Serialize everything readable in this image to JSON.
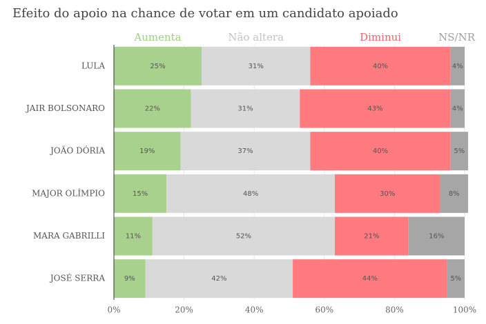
{
  "chart_data": {
    "type": "stacked-bar-horizontal",
    "title": "Efeito do apoio na chance de votar em um candidato apoiado",
    "categories": [
      "LULA",
      "JAIR BOLSONARO",
      "JOÃO DÓRIA",
      "MAJOR OLÍMPIO",
      "MARA GABRILLI",
      "JOSÉ SERRA"
    ],
    "series": [
      {
        "name": "Aumenta",
        "color": "#a9d18e",
        "legend_color": "#9ccf85",
        "values": [
          25,
          22,
          19,
          15,
          11,
          9
        ],
        "value_labels": [
          "25%",
          "22%",
          "19%",
          "15%",
          "11%",
          "9%"
        ]
      },
      {
        "name": "Não altera",
        "color": "#d9d9d9",
        "legend_color": "#c4c4c4",
        "values": [
          31,
          31,
          37,
          48,
          52,
          42
        ],
        "value_labels": [
          "31%",
          "31%",
          "37%",
          "48%",
          "52%",
          "42%"
        ]
      },
      {
        "name": "Diminui",
        "color": "#ff7b80",
        "legend_color": "#f0626b",
        "values": [
          40,
          43,
          40,
          30,
          21,
          44
        ],
        "value_labels": [
          "40%",
          "43%",
          "40%",
          "30%",
          "21%",
          "44%"
        ]
      },
      {
        "name": "NS/NR",
        "color": "#a6a6a6",
        "legend_color": "#a0a0a0",
        "values": [
          4,
          4,
          5,
          8,
          16,
          5
        ],
        "value_labels": [
          "4%",
          "4%",
          "5%",
          "8%",
          "16%",
          "5%"
        ]
      }
    ],
    "xlim": [
      0,
      100
    ],
    "xticks": [
      {
        "value": 0,
        "label": "0%"
      },
      {
        "value": 20,
        "label": "20%"
      },
      {
        "value": 40,
        "label": "40%"
      },
      {
        "value": 60,
        "label": "60%"
      },
      {
        "value": 80,
        "label": "80%"
      },
      {
        "value": 100,
        "label": "100%"
      }
    ],
    "grid": true
  }
}
